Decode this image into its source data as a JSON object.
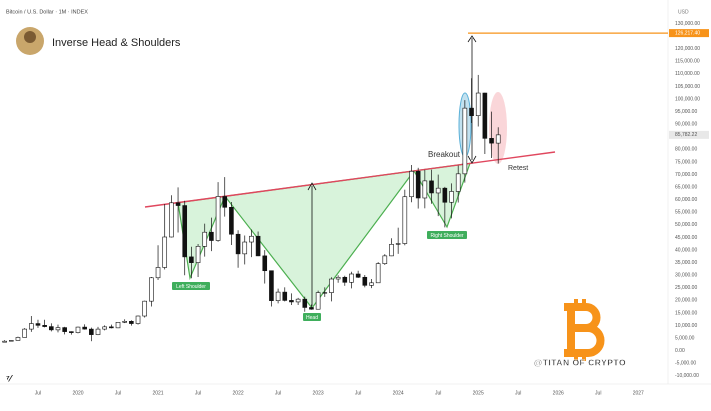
{
  "chart_data": {
    "type": "candlestick",
    "header": "Bitcoin / U.S. Dollar · 1M · INDEX",
    "title": "Inverse Head & Shoulders",
    "currency": "USD",
    "annotations": {
      "left_shoulder": "Left Shoulder",
      "head": "Head",
      "right_shoulder": "Right Shoulder",
      "breakout": "Breakout",
      "retest": "Retest",
      "watermark": "@TITAN OF CRYPTO"
    },
    "x": [
      "2019-02",
      "2019-03",
      "2019-04",
      "2019-05",
      "2019-06",
      "2019-07",
      "2019-08",
      "2019-09",
      "2019-10",
      "2019-11",
      "2019-12",
      "2020-01",
      "2020-02",
      "2020-03",
      "2020-04",
      "2020-05",
      "2020-06",
      "2020-07",
      "2020-08",
      "2020-09",
      "2020-10",
      "2020-11",
      "2020-12",
      "2021-01",
      "2021-02",
      "2021-03",
      "2021-04",
      "2021-05",
      "2021-06",
      "2021-07",
      "2021-08",
      "2021-09",
      "2021-10",
      "2021-11",
      "2021-12",
      "2022-01",
      "2022-02",
      "2022-03",
      "2022-04",
      "2022-05",
      "2022-06",
      "2022-07",
      "2022-08",
      "2022-09",
      "2022-10",
      "2022-11",
      "2022-12",
      "2023-01",
      "2023-02",
      "2023-03",
      "2023-04",
      "2023-05",
      "2023-06",
      "2023-07",
      "2023-08",
      "2023-09",
      "2023-10",
      "2023-11",
      "2023-12",
      "2024-01",
      "2024-02",
      "2024-03",
      "2024-04",
      "2024-05",
      "2024-06",
      "2024-07",
      "2024-08",
      "2024-09",
      "2024-10",
      "2024-11",
      "2024-12",
      "2025-01",
      "2025-02",
      "2025-03",
      "2025-04"
    ],
    "open": [
      3400,
      3800,
      4100,
      5300,
      8600,
      10800,
      10100,
      9600,
      8300,
      9200,
      7600,
      7200,
      9400,
      8600,
      6400,
      8600,
      9500,
      9100,
      11300,
      11700,
      10800,
      13800,
      19700,
      29000,
      33100,
      45200,
      58800,
      57700,
      37300,
      35000,
      41500,
      47100,
      43800,
      61300,
      57000,
      46300,
      38500,
      43200,
      45500,
      37700,
      31800,
      19900,
      23300,
      20000,
      19400,
      20500,
      17200,
      16500,
      23100,
      23100,
      28500,
      29200,
      27200,
      30500,
      29200,
      26000,
      27000,
      34600,
      37700,
      42300,
      42600,
      61200,
      71300,
      60700,
      67500,
      62700,
      64600,
      59000,
      63300,
      70300,
      96400,
      93400,
      102400,
      84400,
      82500
    ],
    "high": [
      4200,
      4100,
      5600,
      9000,
      13800,
      12300,
      12300,
      10900,
      10400,
      9500,
      7700,
      9600,
      10500,
      9200,
      9500,
      10100,
      10400,
      11400,
      12500,
      12100,
      14000,
      19900,
      29300,
      41900,
      58300,
      61800,
      64900,
      59600,
      41300,
      42400,
      50500,
      52900,
      67000,
      69000,
      59100,
      47900,
      45800,
      48200,
      47400,
      40000,
      31900,
      24700,
      25200,
      22800,
      21000,
      21500,
      18400,
      23900,
      25200,
      29200,
      30000,
      29800,
      31400,
      31800,
      30100,
      28500,
      35200,
      38400,
      44700,
      48900,
      64000,
      73800,
      72700,
      71900,
      71900,
      70000,
      65100,
      66500,
      73600,
      99600,
      108300,
      109600,
      102500,
      95000,
      88800
    ],
    "low": [
      3400,
      3700,
      4100,
      5300,
      7500,
      9100,
      9300,
      7700,
      7300,
      6500,
      6400,
      6900,
      8400,
      3800,
      6200,
      8100,
      8900,
      9000,
      11000,
      10000,
      10400,
      13200,
      17600,
      28100,
      32300,
      45000,
      47000,
      30000,
      28800,
      29300,
      37400,
      39600,
      43300,
      53300,
      42000,
      33000,
      34300,
      37200,
      37600,
      26700,
      17600,
      18800,
      19600,
      18200,
      18200,
      15500,
      16300,
      16500,
      21400,
      19600,
      27000,
      25800,
      24800,
      28900,
      25200,
      24900,
      26900,
      34100,
      37600,
      38500,
      41900,
      59000,
      56500,
      56600,
      58400,
      53500,
      49000,
      52600,
      58900,
      66800,
      90500,
      89100,
      78200,
      76600,
      74400
    ],
    "close": [
      3800,
      4100,
      5300,
      8600,
      10800,
      10100,
      9600,
      8300,
      9200,
      7600,
      7200,
      9400,
      8600,
      6400,
      8600,
      9500,
      9100,
      11300,
      11700,
      10800,
      13800,
      19700,
      29000,
      33100,
      45200,
      58800,
      57700,
      37300,
      35000,
      41500,
      47100,
      43800,
      61300,
      57000,
      46300,
      38500,
      43200,
      45500,
      37700,
      31800,
      19900,
      23300,
      20000,
      19400,
      20500,
      17200,
      16500,
      23100,
      23100,
      28500,
      29200,
      27200,
      30500,
      29200,
      26000,
      27000,
      34600,
      37700,
      42300,
      42600,
      61200,
      71300,
      60700,
      67500,
      62700,
      64600,
      59000,
      63300,
      70300,
      96400,
      93400,
      102400,
      84400,
      82500,
      85782.22
    ],
    "up_color": "#ffffff",
    "down_color": "#111111",
    "ylim": [
      -15000,
      135000
    ],
    "yticks": [
      {
        "value": 130000,
        "label": "130,000.00"
      },
      {
        "value": 120000,
        "label": "120,000.00"
      },
      {
        "value": 115000,
        "label": "115,000.00"
      },
      {
        "value": 110000,
        "label": "110,000.00"
      },
      {
        "value": 105000,
        "label": "105,000.00"
      },
      {
        "value": 100000,
        "label": "100,000.00"
      },
      {
        "value": 95000,
        "label": "95,000.00"
      },
      {
        "value": 90000,
        "label": "90,000.00"
      },
      {
        "value": 80000,
        "label": "80,000.00"
      },
      {
        "value": 75000,
        "label": "75,000.00"
      },
      {
        "value": 70000,
        "label": "70,000.00"
      },
      {
        "value": 65000,
        "label": "65,000.00"
      },
      {
        "value": 60000,
        "label": "60,000.00"
      },
      {
        "value": 55000,
        "label": "55,000.00"
      },
      {
        "value": 50000,
        "label": "50,000.00"
      },
      {
        "value": 45000,
        "label": "45,000.00"
      },
      {
        "value": 40000,
        "label": "40,000.00"
      },
      {
        "value": 35000,
        "label": "35,000.00"
      },
      {
        "value": 30000,
        "label": "30,000.00"
      },
      {
        "value": 25000,
        "label": "25,000.00"
      },
      {
        "value": 20000,
        "label": "20,000.00"
      },
      {
        "value": 15000,
        "label": "15,000.00"
      },
      {
        "value": 10000,
        "label": "10,000.00"
      },
      {
        "value": 5000,
        "label": "5,000.00"
      },
      {
        "value": 0,
        "label": "0.00"
      },
      {
        "value": -5000,
        "label": "-5,000.00"
      },
      {
        "value": -10000,
        "label": "-10,000.00"
      }
    ],
    "xticks": [
      {
        "value": "2019-07",
        "label": "Jul"
      },
      {
        "value": "2020-01",
        "label": "2020"
      },
      {
        "value": "2020-07",
        "label": "Jul"
      },
      {
        "value": "2021-01",
        "label": "2021"
      },
      {
        "value": "2021-07",
        "label": "Jul"
      },
      {
        "value": "2022-01",
        "label": "2022"
      },
      {
        "value": "2022-07",
        "label": "Jul"
      },
      {
        "value": "2023-01",
        "label": "2023"
      },
      {
        "value": "2023-07",
        "label": "Jul"
      },
      {
        "value": "2024-01",
        "label": "2024"
      },
      {
        "value": "2024-07",
        "label": "Jul"
      },
      {
        "value": "2025-01",
        "label": "2025"
      },
      {
        "value": "2025-07",
        "label": "Jul"
      },
      {
        "value": "2026-01",
        "label": "2026"
      },
      {
        "value": "2026-07",
        "label": "Jul"
      },
      {
        "value": "2027-01",
        "label": "2027"
      }
    ],
    "target": {
      "value": 126217.4,
      "label": "126,217.40",
      "color": "#f7931a"
    },
    "last_price": {
      "value": 85782.22,
      "label": "85,782.22"
    },
    "grid": false
  }
}
